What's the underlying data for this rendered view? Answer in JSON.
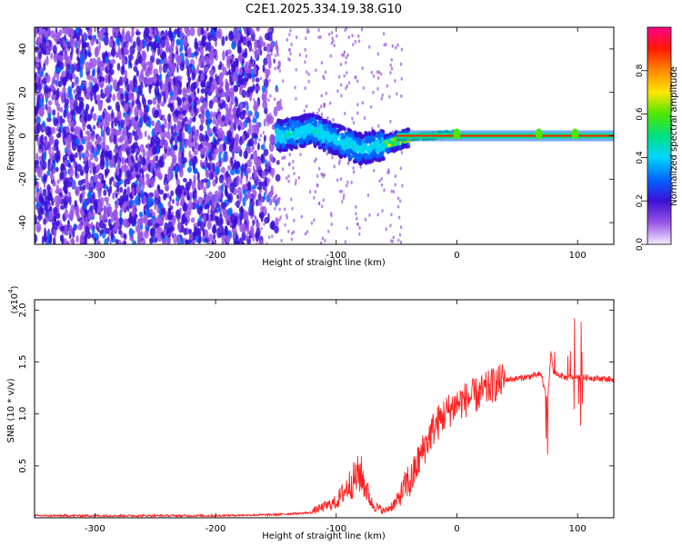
{
  "title": "C2E1.2025.334.19.38.G10",
  "chart_data": [
    {
      "type": "heatmap",
      "xlabel": "Height of straight line (km)",
      "ylabel": "Frequency (Hz)",
      "xlim": [
        -350,
        130
      ],
      "ylim": [
        -50,
        50
      ],
      "xticks": [
        -300,
        -200,
        -100,
        0,
        100
      ],
      "yticks": [
        -40,
        -20,
        0,
        20,
        40
      ],
      "grid": false,
      "colorbar": {
        "label": "Normalized spectral amplitude",
        "range": [
          0,
          1
        ],
        "ticks": [
          "0.0",
          "0.2",
          "0.4",
          "0.6",
          "0.8"
        ],
        "colormap": [
          "#f4ecff",
          "#9a55e6",
          "#3b10d6",
          "#0066ff",
          "#00d5ff",
          "#00e080",
          "#4ee600",
          "#ffe600",
          "#ff8a00",
          "#ff1a00",
          "#ff0088"
        ]
      },
      "center_line": {
        "frequency_hz": 0,
        "start_km": -50,
        "end_km": 130,
        "color": "#ff1a00"
      },
      "description_points": [
        {
          "x": -145,
          "y": 0
        },
        {
          "x": -120,
          "y": 3
        },
        {
          "x": -100,
          "y": -2
        },
        {
          "x": -80,
          "y": -6
        },
        {
          "x": -60,
          "y": -4
        },
        {
          "x": -40,
          "y": -1
        },
        {
          "x": -20,
          "y": 0
        },
        {
          "x": 0,
          "y": 1
        }
      ]
    },
    {
      "type": "line",
      "xlabel": "Height of straight line (km)",
      "ylabel": "SNR (10 * v/v)",
      "yscale_label": "(x10",
      "yscale_exp": "4",
      "xlim": [
        -350,
        130
      ],
      "ylim": [
        0,
        2.1
      ],
      "xticks": [
        -300,
        -200,
        -100,
        0,
        100
      ],
      "yticks": [
        "0.5",
        "1.0",
        "1.5",
        "2.0"
      ],
      "grid": false,
      "series": [
        {
          "color": "#ff2020",
          "x": [
            -350,
            -300,
            -250,
            -200,
            -150,
            -120,
            -100,
            -90,
            -80,
            -75,
            -70,
            -60,
            -50,
            -40,
            -30,
            -20,
            -10,
            0,
            10,
            20,
            30,
            40,
            50,
            60,
            70,
            75,
            78,
            80,
            90,
            100,
            110,
            120,
            130
          ],
          "y": [
            0.02,
            0.02,
            0.02,
            0.02,
            0.03,
            0.05,
            0.12,
            0.25,
            0.35,
            0.22,
            0.1,
            0.05,
            0.12,
            0.3,
            0.6,
            0.85,
            1.0,
            1.1,
            1.15,
            1.2,
            1.28,
            1.33,
            1.34,
            1.36,
            1.38,
            1.1,
            1.6,
            1.4,
            1.35,
            1.35,
            1.35,
            1.34,
            1.33
          ]
        }
      ]
    }
  ]
}
